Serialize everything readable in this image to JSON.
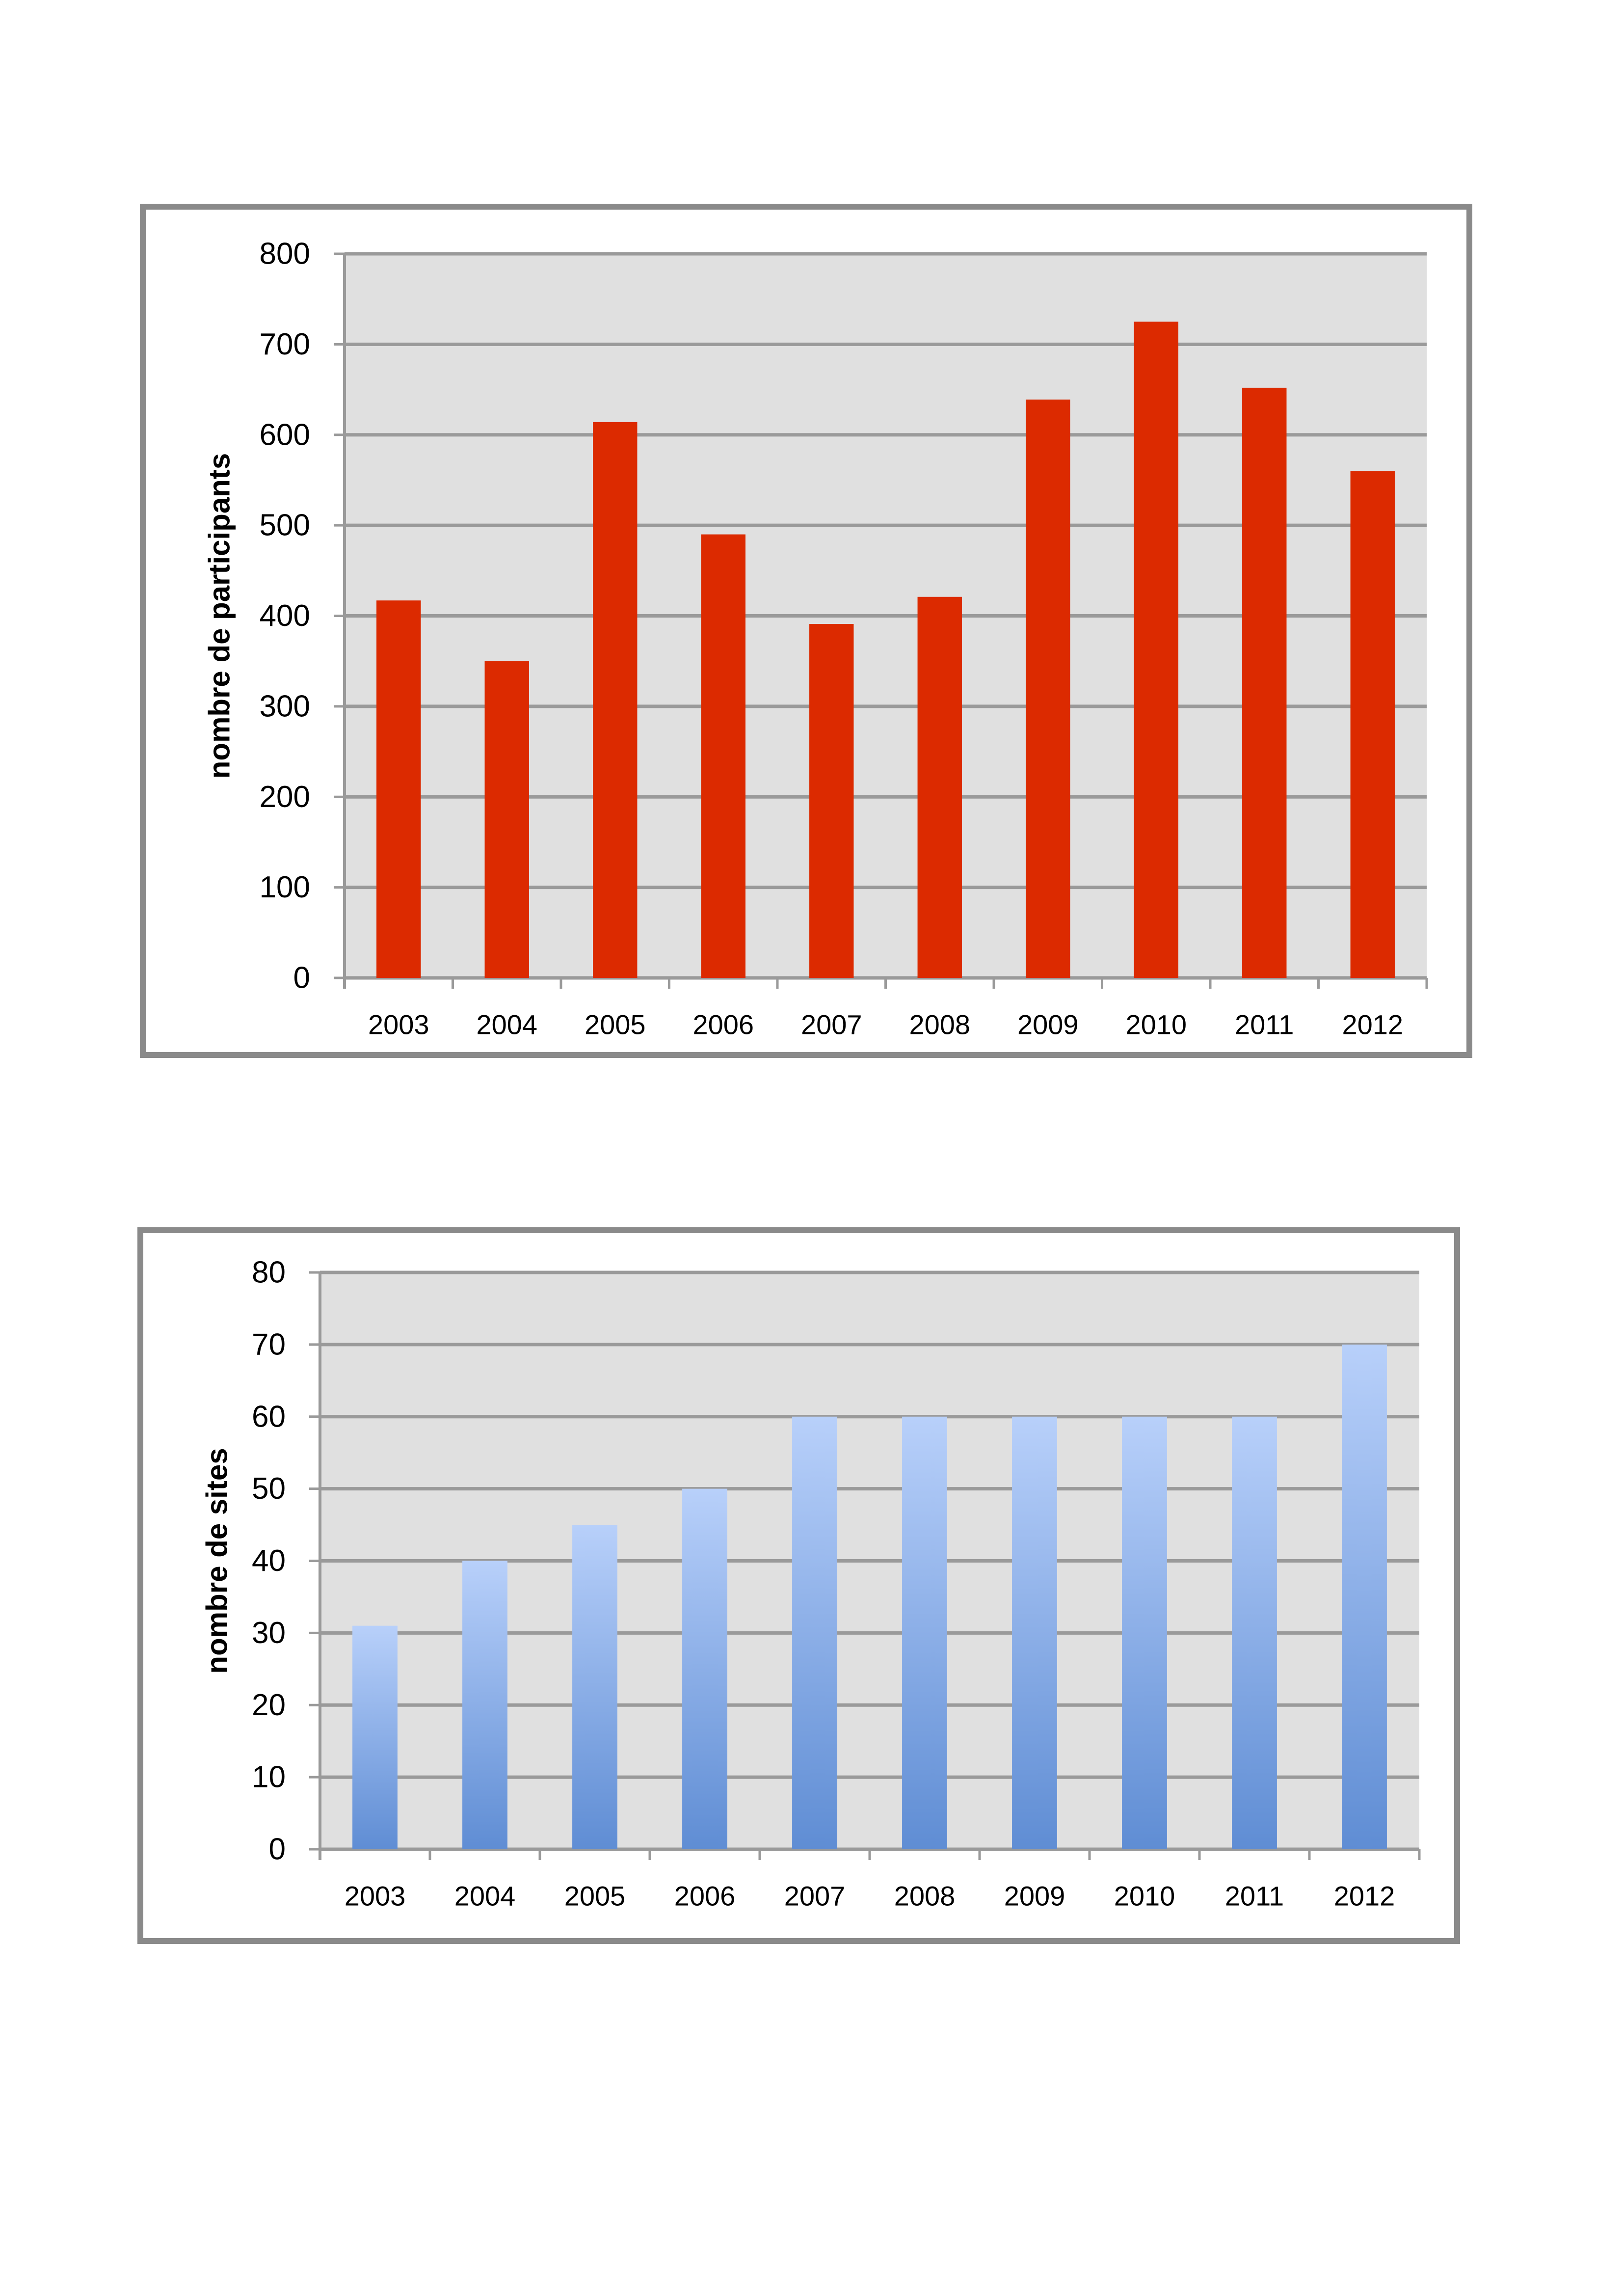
{
  "chart_data": [
    {
      "type": "bar",
      "categories": [
        "2003",
        "2004",
        "2005",
        "2006",
        "2007",
        "2008",
        "2009",
        "2010",
        "2011",
        "2012"
      ],
      "values": [
        417,
        350,
        614,
        490,
        391,
        421,
        639,
        725,
        652,
        560
      ],
      "ylabel": "nombre de participants",
      "xlabel": "",
      "ylim": [
        0,
        800
      ],
      "yticks": [
        "0",
        "100",
        "200",
        "300",
        "400",
        "500",
        "600",
        "700",
        "800"
      ],
      "grid": true,
      "bar_color": "#dc2a00",
      "plot_background": "#e0e0e0"
    },
    {
      "type": "bar",
      "categories": [
        "2003",
        "2004",
        "2005",
        "2006",
        "2007",
        "2008",
        "2009",
        "2010",
        "2011",
        "2012"
      ],
      "values": [
        31,
        40,
        45,
        50,
        60,
        60,
        60,
        60,
        60,
        70
      ],
      "ylabel": "nombre de sites",
      "xlabel": "",
      "ylim": [
        0,
        80
      ],
      "yticks": [
        "0",
        "10",
        "20",
        "30",
        "40",
        "50",
        "60",
        "70",
        "80"
      ],
      "grid": true,
      "bar_color_top": "#b8d0fa",
      "bar_color_bottom": "#5f8dd4",
      "plot_background": "#e0e0e0"
    }
  ]
}
